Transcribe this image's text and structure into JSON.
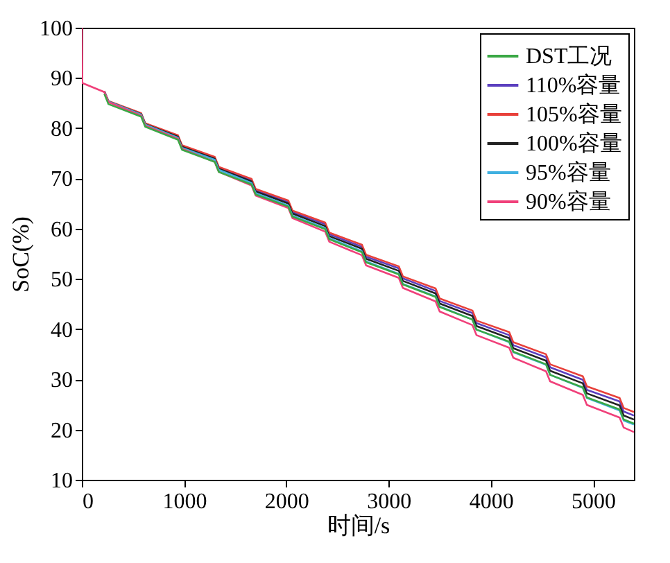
{
  "chart_data": {
    "type": "line",
    "xlabel": "时间/s",
    "ylabel": "SoC(%)",
    "x": [
      0,
      5,
      220,
      260,
      580,
      620,
      940,
      980,
      1300,
      1340,
      1660,
      1700,
      2020,
      2060,
      2380,
      2420,
      2740,
      2780,
      3100,
      3140,
      3460,
      3500,
      3820,
      3860,
      4180,
      4220,
      4540,
      4580,
      4900,
      4940,
      5260,
      5300,
      5400
    ],
    "xlim": [
      0,
      5400
    ],
    "xticks": [
      0,
      {
        "value": 1000,
        "label": "1000"
      },
      {
        "value": 2000,
        "label": "2000"
      },
      {
        "value": 3000,
        "label": "3000"
      },
      {
        "value": 4000,
        "label": "4000"
      },
      {
        "value": 5000,
        "label": "5000"
      }
    ],
    "ylim": [
      10,
      100
    ],
    "yticks": [
      10,
      20,
      30,
      40,
      50,
      60,
      70,
      80,
      90,
      100
    ],
    "grid": false,
    "legend": "top right",
    "line_style": "solid",
    "marker": "none",
    "series": [
      {
        "name": "DST工况",
        "color": "#3aa845",
        "values": [
          null,
          null,
          86.8,
          84.8,
          82.3,
          80.3,
          77.7,
          75.7,
          73.3,
          71.3,
          68.8,
          66.8,
          64.4,
          62.4,
          59.9,
          57.9,
          55.3,
          53.3,
          50.9,
          48.9,
          46.4,
          44.4,
          41.9,
          39.9,
          37.5,
          35.5,
          33.0,
          30.9,
          28.4,
          26.4,
          24.0,
          22.0,
          21.2
        ]
      },
      {
        "name": "110%容量",
        "color": "#5b3fbf",
        "values": [
          null,
          null,
          87.3,
          85.3,
          82.9,
          80.9,
          78.4,
          76.4,
          74.1,
          72.1,
          69.6,
          67.6,
          65.3,
          63.3,
          60.9,
          58.9,
          56.4,
          54.4,
          52.1,
          50.1,
          47.6,
          45.6,
          43.2,
          41.2,
          38.8,
          36.8,
          34.4,
          32.4,
          29.9,
          27.9,
          25.6,
          23.6,
          22.8
        ]
      },
      {
        "name": "105%容量",
        "color": "#e8403a",
        "values": [
          null,
          null,
          87.4,
          85.4,
          83.0,
          81.0,
          78.6,
          76.6,
          74.3,
          72.3,
          69.9,
          67.9,
          65.6,
          63.6,
          61.2,
          59.2,
          56.8,
          54.8,
          52.5,
          50.5,
          48.1,
          46.1,
          43.7,
          41.7,
          39.4,
          37.4,
          35.0,
          33.0,
          30.6,
          28.6,
          26.3,
          24.3,
          23.5
        ]
      },
      {
        "name": "100%容量",
        "color": "#222222",
        "values": [
          null,
          null,
          87.3,
          85.3,
          82.8,
          80.8,
          78.3,
          76.3,
          73.9,
          71.9,
          69.4,
          67.4,
          65.0,
          63.0,
          60.5,
          58.5,
          56.0,
          54.0,
          51.6,
          49.6,
          47.1,
          45.1,
          42.6,
          40.6,
          38.2,
          36.2,
          33.7,
          31.7,
          29.2,
          27.2,
          24.8,
          22.8,
          22.0
        ]
      },
      {
        "name": "95%容量",
        "color": "#3fb0e0",
        "values": [
          null,
          null,
          87.3,
          85.3,
          82.7,
          80.7,
          78.1,
          76.1,
          73.7,
          71.7,
          69.1,
          67.1,
          64.6,
          62.6,
          60.1,
          58.1,
          55.5,
          53.5,
          51.0,
          49.0,
          46.5,
          44.5,
          41.9,
          39.9,
          37.4,
          35.4,
          32.9,
          30.9,
          28.3,
          26.3,
          23.8,
          21.8,
          21.0
        ]
      },
      {
        "name": "90%容量",
        "color": "#f0407a",
        "values": [
          100,
          89,
          87.2,
          85.2,
          82.5,
          80.5,
          77.9,
          75.9,
          73.3,
          71.3,
          68.6,
          66.6,
          64.1,
          62.1,
          59.4,
          57.4,
          54.7,
          52.7,
          50.2,
          48.2,
          45.5,
          43.5,
          40.8,
          38.8,
          36.3,
          34.3,
          31.6,
          29.6,
          26.9,
          24.9,
          22.4,
          20.4,
          19.5
        ]
      }
    ]
  }
}
